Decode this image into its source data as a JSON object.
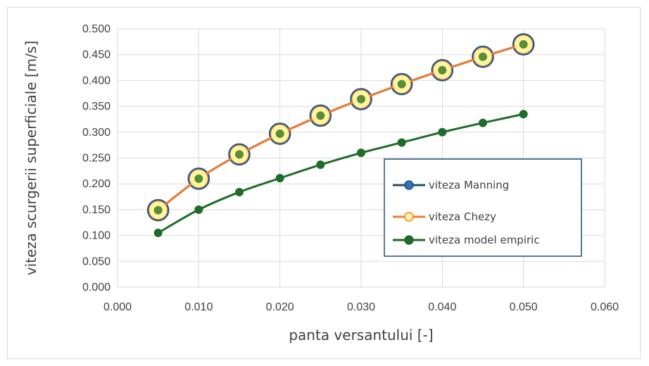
{
  "chart_data": {
    "type": "line",
    "xlabel": "panta versantului [-]",
    "ylabel": "viteza scurgerii superficiale [m/s]",
    "xlim": [
      0.0,
      0.06
    ],
    "ylim": [
      0.0,
      0.5
    ],
    "x_ticks": [
      "0.000",
      "0.010",
      "0.020",
      "0.030",
      "0.040",
      "0.050",
      "0.060"
    ],
    "y_ticks": [
      "0.000",
      "0.050",
      "0.100",
      "0.150",
      "0.200",
      "0.250",
      "0.300",
      "0.350",
      "0.400",
      "0.450",
      "0.500"
    ],
    "grid": true,
    "legend_position": "lower-right",
    "x": [
      0.005,
      0.01,
      0.015,
      0.02,
      0.025,
      0.03,
      0.035,
      0.04,
      0.045,
      0.05
    ],
    "series": [
      {
        "name": "viteza Manning",
        "values": [
          0.149,
          0.21,
          0.257,
          0.297,
          0.332,
          0.364,
          0.393,
          0.42,
          0.446,
          0.47
        ],
        "line_color": "#1f4e79",
        "marker": "circle",
        "marker_fill": "#2e75b6"
      },
      {
        "name": "viteza Chezy",
        "values": [
          0.149,
          0.21,
          0.257,
          0.297,
          0.332,
          0.364,
          0.393,
          0.42,
          0.446,
          0.47
        ],
        "line_color": "#ed7d31",
        "marker": "circle",
        "marker_fill": "#fff59d",
        "marker_stroke": "#ed7d31"
      },
      {
        "name": "viteza model empiric",
        "values": [
          0.105,
          0.15,
          0.184,
          0.211,
          0.237,
          0.26,
          0.28,
          0.3,
          0.318,
          0.335
        ],
        "line_color": "#1e6b2a",
        "marker": "circle",
        "marker_fill": "#1e6b2a"
      }
    ]
  }
}
